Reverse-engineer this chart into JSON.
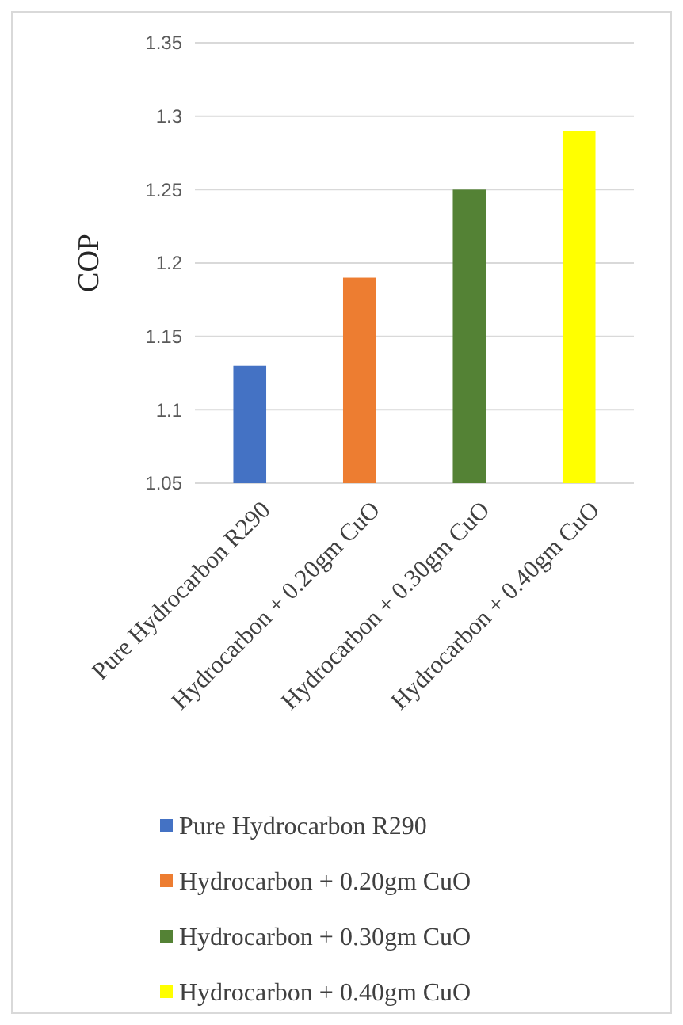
{
  "chart_data": {
    "type": "bar",
    "ylabel": "COP",
    "categories": [
      "Pure Hydrocarbon R290",
      "Hydrocarbon + 0.20gm CuO",
      "Hydrocarbon + 0.30gm CuO",
      "Hydrocarbon + 0.40gm CuO"
    ],
    "series": [
      {
        "name": "Pure Hydrocarbon R290",
        "color": "#4472c4",
        "values": [
          1.13,
          null,
          null,
          null
        ]
      },
      {
        "name": "Hydrocarbon + 0.20gm CuO",
        "color": "#ed7d31",
        "values": [
          null,
          1.19,
          null,
          null
        ]
      },
      {
        "name": "Hydrocarbon + 0.30gm CuO",
        "color": "#548235",
        "values": [
          null,
          null,
          1.25,
          null
        ]
      },
      {
        "name": "Hydrocarbon + 0.40gm CuO",
        "color": "#ffff00",
        "values": [
          null,
          null,
          null,
          1.29
        ]
      }
    ],
    "ylim": [
      1.05,
      1.35
    ],
    "yticks": [
      1.05,
      1.1,
      1.15,
      1.2,
      1.25,
      1.3,
      1.35
    ],
    "grid": "y",
    "legend": "bottom"
  }
}
